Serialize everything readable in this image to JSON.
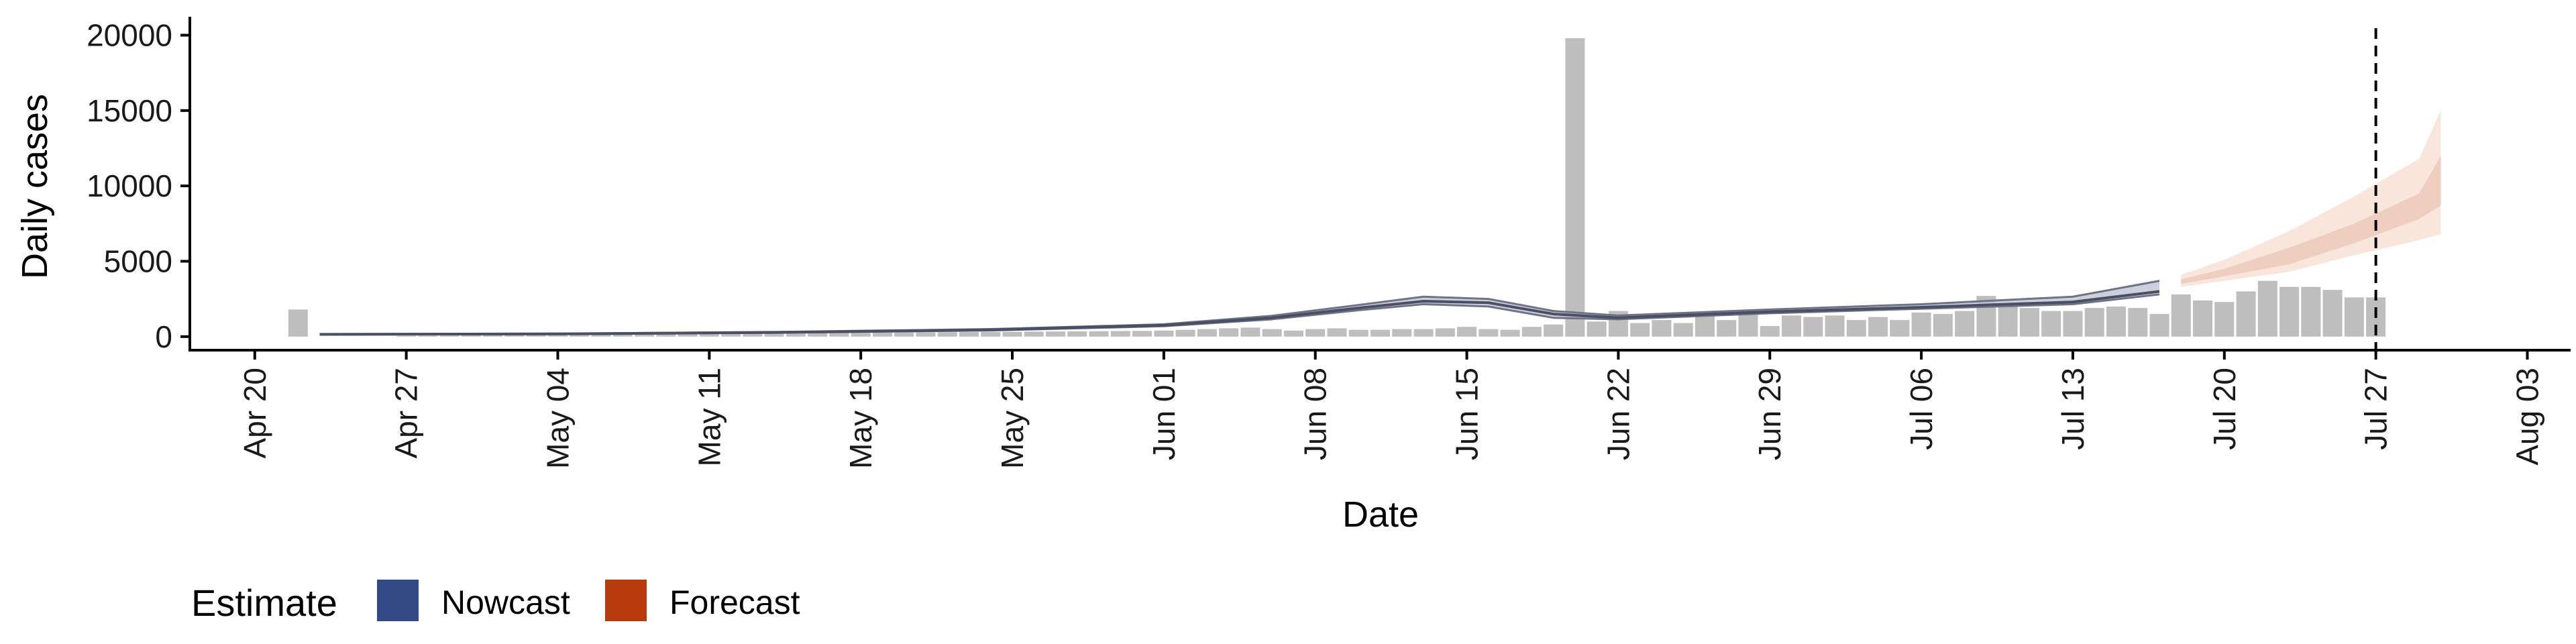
{
  "chart_data": {
    "type": "bar",
    "xlabel": "Date",
    "ylabel": "Daily cases",
    "x_tick_labels": [
      "Apr 20",
      "Apr 27",
      "May 04",
      "May 11",
      "May 18",
      "May 25",
      "Jun 01",
      "Jun 08",
      "Jun 15",
      "Jun 22",
      "Jun 29",
      "Jul 06",
      "Jul 13",
      "Jul 20",
      "Jul 27",
      "Aug 03"
    ],
    "x_tick_dates": [
      "2020-04-20",
      "2020-04-27",
      "2020-05-04",
      "2020-05-11",
      "2020-05-18",
      "2020-05-25",
      "2020-06-01",
      "2020-06-08",
      "2020-06-15",
      "2020-06-22",
      "2020-06-29",
      "2020-07-06",
      "2020-07-13",
      "2020-07-20",
      "2020-07-27",
      "2020-08-03"
    ],
    "y_tick_labels": [
      "0",
      "5000",
      "10000",
      "15000",
      "20000"
    ],
    "y_ticks": [
      0,
      5000,
      10000,
      15000,
      20000
    ],
    "xlim": [
      "2020-04-17",
      "2020-08-05"
    ],
    "ylim": [
      -900,
      21000
    ],
    "grid": false,
    "legend_position": "bottom-left",
    "legend_title": "Estimate",
    "legend": [
      {
        "name": "Nowcast",
        "color": "#344a86"
      },
      {
        "name": "Forecast",
        "color": "#b83a0f"
      }
    ],
    "reference_line_date": "2020-07-27",
    "bar_color": "#bebebe",
    "bars": {
      "dates": [
        "2020-04-22",
        "2020-04-23",
        "2020-04-24",
        "2020-04-25",
        "2020-04-26",
        "2020-04-27",
        "2020-04-28",
        "2020-04-29",
        "2020-04-30",
        "2020-05-01",
        "2020-05-02",
        "2020-05-03",
        "2020-05-04",
        "2020-05-05",
        "2020-05-06",
        "2020-05-07",
        "2020-05-08",
        "2020-05-09",
        "2020-05-10",
        "2020-05-11",
        "2020-05-12",
        "2020-05-13",
        "2020-05-14",
        "2020-05-15",
        "2020-05-16",
        "2020-05-17",
        "2020-05-18",
        "2020-05-19",
        "2020-05-20",
        "2020-05-21",
        "2020-05-22",
        "2020-05-23",
        "2020-05-24",
        "2020-05-25",
        "2020-05-26",
        "2020-05-27",
        "2020-05-28",
        "2020-05-29",
        "2020-05-30",
        "2020-05-31",
        "2020-06-01",
        "2020-06-02",
        "2020-06-03",
        "2020-06-04",
        "2020-06-05",
        "2020-06-06",
        "2020-06-07",
        "2020-06-08",
        "2020-06-09",
        "2020-06-10",
        "2020-06-11",
        "2020-06-12",
        "2020-06-13",
        "2020-06-14",
        "2020-06-15",
        "2020-06-16",
        "2020-06-17",
        "2020-06-18",
        "2020-06-19",
        "2020-06-20",
        "2020-06-21",
        "2020-06-22",
        "2020-06-23",
        "2020-06-24",
        "2020-06-25",
        "2020-06-26",
        "2020-06-27",
        "2020-06-28",
        "2020-06-29",
        "2020-06-30",
        "2020-07-01",
        "2020-07-02",
        "2020-07-03",
        "2020-07-04",
        "2020-07-05",
        "2020-07-06",
        "2020-07-07",
        "2020-07-08",
        "2020-07-09",
        "2020-07-10",
        "2020-07-11",
        "2020-07-12",
        "2020-07-13",
        "2020-07-14",
        "2020-07-15",
        "2020-07-16",
        "2020-07-17",
        "2020-07-18",
        "2020-07-19",
        "2020-07-20",
        "2020-07-21",
        "2020-07-22",
        "2020-07-23",
        "2020-07-24",
        "2020-07-25",
        "2020-07-26",
        "2020-07-27"
      ],
      "values": [
        1800,
        0,
        0,
        0,
        0,
        50,
        60,
        70,
        80,
        90,
        100,
        110,
        110,
        120,
        130,
        140,
        150,
        160,
        170,
        180,
        190,
        200,
        210,
        220,
        230,
        240,
        250,
        260,
        270,
        280,
        290,
        300,
        310,
        320,
        330,
        340,
        350,
        360,
        370,
        380,
        400,
        450,
        500,
        550,
        600,
        500,
        400,
        500,
        550,
        450,
        450,
        500,
        500,
        550,
        650,
        500,
        450,
        650,
        800,
        19800,
        1000,
        1700,
        900,
        1100,
        900,
        1600,
        1100,
        1500,
        700,
        1400,
        1300,
        1400,
        1100,
        1300,
        1100,
        1600,
        1500,
        1700,
        2700,
        2100,
        1900,
        1700,
        1700,
        1900,
        2000,
        1900,
        1500,
        2800,
        2400,
        2300,
        3000,
        3700,
        3300,
        3300,
        3100,
        2600,
        2600
      ]
    },
    "nowcast": {
      "dates": [
        "2020-04-23",
        "2020-05-04",
        "2020-05-14",
        "2020-05-24",
        "2020-06-01",
        "2020-06-06",
        "2020-06-10",
        "2020-06-13",
        "2020-06-16",
        "2020-06-19",
        "2020-06-22",
        "2020-06-29",
        "2020-07-06",
        "2020-07-13",
        "2020-07-17"
      ],
      "median": [
        150,
        180,
        280,
        450,
        750,
        1250,
        1900,
        2350,
        2250,
        1500,
        1250,
        1650,
        1950,
        2300,
        3000
      ],
      "lower_90": [
        130,
        160,
        250,
        410,
        690,
        1150,
        1750,
        2150,
        2000,
        1250,
        1150,
        1550,
        1850,
        2150,
        2800
      ],
      "upper_90": [
        170,
        200,
        310,
        500,
        820,
        1380,
        2100,
        2650,
        2500,
        1700,
        1400,
        1800,
        2150,
        2650,
        3700
      ]
    },
    "forecast": {
      "dates": [
        "2020-07-18",
        "2020-07-20",
        "2020-07-23",
        "2020-07-26",
        "2020-07-29",
        "2020-07-30"
      ],
      "median": [
        3600,
        4200,
        5200,
        6800,
        8300,
        10000
      ],
      "lower_50": [
        3500,
        4000,
        4800,
        6200,
        7800,
        8700
      ],
      "upper_50": [
        3800,
        4500,
        5900,
        7500,
        9500,
        12000
      ],
      "lower_90": [
        3300,
        3700,
        4300,
        5400,
        6400,
        6800
      ],
      "upper_90": [
        4100,
        5100,
        7000,
        9300,
        11800,
        15000
      ]
    }
  }
}
